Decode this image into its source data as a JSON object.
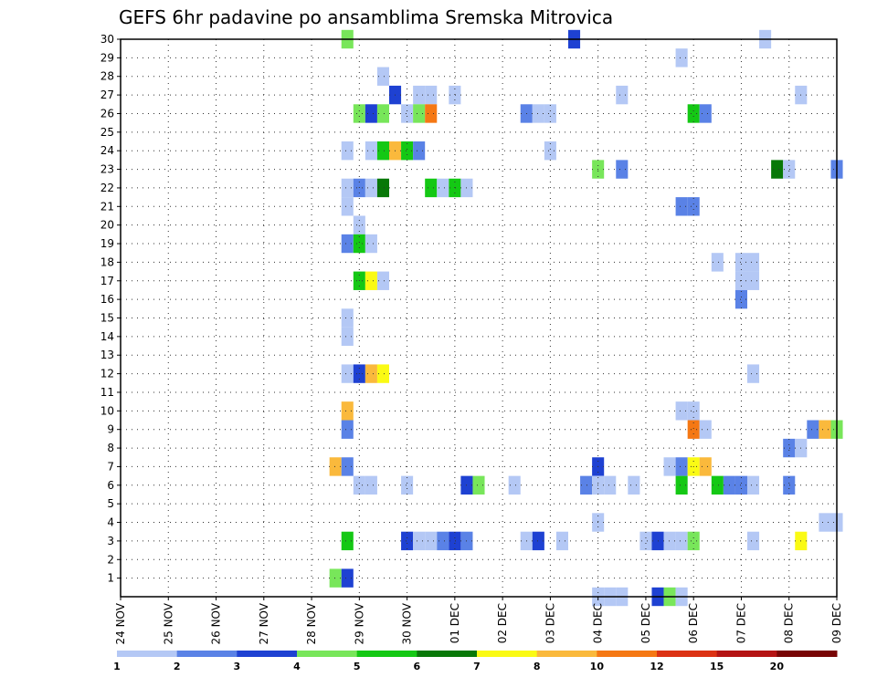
{
  "chart_data": {
    "type": "heatmap",
    "title": "GEFS 6hr padavine po ansamblima Sremska Mitrovica",
    "xlabel": "",
    "ylabel": "",
    "x_tick_labels": [
      "24 NOV",
      "25 NOV",
      "26 NOV",
      "27 NOV",
      "28 NOV",
      "29 NOV",
      "30 NOV",
      "01 DEC",
      "02 DEC",
      "03 DEC",
      "04 DEC",
      "05 DEC",
      "06 DEC",
      "07 DEC",
      "08 DEC",
      "09 DEC"
    ],
    "x_range": [
      0,
      60
    ],
    "x_unit": "6-hour steps from 24 NOV 00Z",
    "y_tick_labels": [
      "1",
      "2",
      "3",
      "4",
      "5",
      "6",
      "7",
      "8",
      "9",
      "10",
      "11",
      "12",
      "13",
      "14",
      "15",
      "16",
      "17",
      "18",
      "19",
      "20",
      "21",
      "22",
      "23",
      "24",
      "25",
      "26",
      "27",
      "28",
      "29",
      "30"
    ],
    "y_range": [
      0,
      30
    ],
    "grid": true,
    "legend": {
      "placement": "bottom",
      "bins": [
        {
          "label": "1",
          "color": "#b4c8f5"
        },
        {
          "label": "2",
          "color": "#5a82e6"
        },
        {
          "label": "3",
          "color": "#1e41d2"
        },
        {
          "label": "4",
          "color": "#78e65a"
        },
        {
          "label": "5",
          "color": "#14c814"
        },
        {
          "label": "6",
          "color": "#087808"
        },
        {
          "label": "7",
          "color": "#fafa14"
        },
        {
          "label": "8",
          "color": "#fab93c"
        },
        {
          "label": "10",
          "color": "#f57814"
        },
        {
          "label": "12",
          "color": "#dc3214"
        },
        {
          "label": "15",
          "color": "#b41414"
        },
        {
          "label": "20",
          "color": "#780505"
        }
      ]
    },
    "cells": [
      [
        19,
        30,
        3
      ],
      [
        38,
        30,
        2
      ],
      [
        54,
        30,
        0
      ],
      [
        47,
        29,
        0
      ],
      [
        22,
        28,
        0
      ],
      [
        23,
        27,
        2
      ],
      [
        25,
        27,
        0
      ],
      [
        26,
        27,
        0
      ],
      [
        28,
        27,
        0
      ],
      [
        42,
        27,
        0
      ],
      [
        57,
        27,
        0
      ],
      [
        20,
        26,
        3
      ],
      [
        21,
        26,
        2
      ],
      [
        22,
        26,
        3
      ],
      [
        24,
        26,
        0
      ],
      [
        25,
        26,
        3
      ],
      [
        26,
        26,
        8
      ],
      [
        34,
        26,
        1
      ],
      [
        35,
        26,
        0
      ],
      [
        36,
        26,
        0
      ],
      [
        48,
        26,
        4
      ],
      [
        49,
        26,
        1
      ],
      [
        19,
        24,
        0
      ],
      [
        21,
        24,
        0
      ],
      [
        22,
        24,
        4
      ],
      [
        23,
        24,
        7
      ],
      [
        24,
        24,
        4
      ],
      [
        25,
        24,
        1
      ],
      [
        36,
        24,
        0
      ],
      [
        40,
        23,
        3
      ],
      [
        42,
        23,
        1
      ],
      [
        55,
        23,
        5
      ],
      [
        56,
        23,
        0
      ],
      [
        60,
        23,
        1
      ],
      [
        19,
        22,
        0
      ],
      [
        20,
        22,
        1
      ],
      [
        21,
        22,
        0
      ],
      [
        22,
        22,
        5
      ],
      [
        26,
        22,
        4
      ],
      [
        27,
        22,
        0
      ],
      [
        28,
        22,
        4
      ],
      [
        29,
        22,
        0
      ],
      [
        19,
        21,
        0
      ],
      [
        47,
        21,
        1
      ],
      [
        48,
        21,
        1
      ],
      [
        20,
        20,
        0
      ],
      [
        19,
        19,
        1
      ],
      [
        20,
        19,
        4
      ],
      [
        21,
        19,
        0
      ],
      [
        50,
        18,
        0
      ],
      [
        52,
        18,
        0
      ],
      [
        53,
        18,
        0
      ],
      [
        20,
        17,
        4
      ],
      [
        21,
        17,
        6
      ],
      [
        22,
        17,
        0
      ],
      [
        52,
        17,
        0
      ],
      [
        53,
        17,
        0
      ],
      [
        52,
        16,
        1
      ],
      [
        19,
        15,
        0
      ],
      [
        19,
        14,
        0
      ],
      [
        19,
        12,
        0
      ],
      [
        20,
        12,
        2
      ],
      [
        21,
        12,
        7
      ],
      [
        22,
        12,
        6
      ],
      [
        53,
        12,
        0
      ],
      [
        19,
        10,
        7
      ],
      [
        47,
        10,
        0
      ],
      [
        48,
        10,
        0
      ],
      [
        19,
        9,
        1
      ],
      [
        48,
        9,
        8
      ],
      [
        49,
        9,
        0
      ],
      [
        58,
        9,
        1
      ],
      [
        59,
        9,
        7
      ],
      [
        60,
        9,
        3
      ],
      [
        56,
        8,
        1
      ],
      [
        57,
        8,
        0
      ],
      [
        18,
        7,
        7
      ],
      [
        19,
        7,
        1
      ],
      [
        40,
        7,
        2
      ],
      [
        46,
        7,
        0
      ],
      [
        47,
        7,
        1
      ],
      [
        48,
        7,
        6
      ],
      [
        49,
        7,
        7
      ],
      [
        20,
        6,
        0
      ],
      [
        21,
        6,
        0
      ],
      [
        24,
        6,
        0
      ],
      [
        29,
        6,
        2
      ],
      [
        30,
        6,
        3
      ],
      [
        33,
        6,
        0
      ],
      [
        39,
        6,
        1
      ],
      [
        40,
        6,
        0
      ],
      [
        41,
        6,
        0
      ],
      [
        43,
        6,
        0
      ],
      [
        47,
        6,
        4
      ],
      [
        50,
        6,
        4
      ],
      [
        51,
        6,
        1
      ],
      [
        52,
        6,
        1
      ],
      [
        53,
        6,
        0
      ],
      [
        56,
        6,
        1
      ],
      [
        40,
        4,
        0
      ],
      [
        59,
        4,
        0
      ],
      [
        60,
        4,
        0
      ],
      [
        19,
        3,
        4
      ],
      [
        24,
        3,
        2
      ],
      [
        25,
        3,
        0
      ],
      [
        26,
        3,
        0
      ],
      [
        27,
        3,
        1
      ],
      [
        28,
        3,
        2
      ],
      [
        29,
        3,
        1
      ],
      [
        34,
        3,
        0
      ],
      [
        35,
        3,
        2
      ],
      [
        37,
        3,
        0
      ],
      [
        44,
        3,
        0
      ],
      [
        45,
        3,
        2
      ],
      [
        46,
        3,
        0
      ],
      [
        47,
        3,
        0
      ],
      [
        48,
        3,
        3
      ],
      [
        53,
        3,
        0
      ],
      [
        57,
        3,
        6
      ],
      [
        18,
        1,
        3
      ],
      [
        19,
        1,
        2
      ],
      [
        40,
        0,
        0
      ],
      [
        41,
        0,
        0
      ],
      [
        42,
        0,
        0
      ],
      [
        45,
        0,
        2
      ],
      [
        46,
        0,
        3
      ],
      [
        47,
        0,
        0
      ]
    ]
  }
}
